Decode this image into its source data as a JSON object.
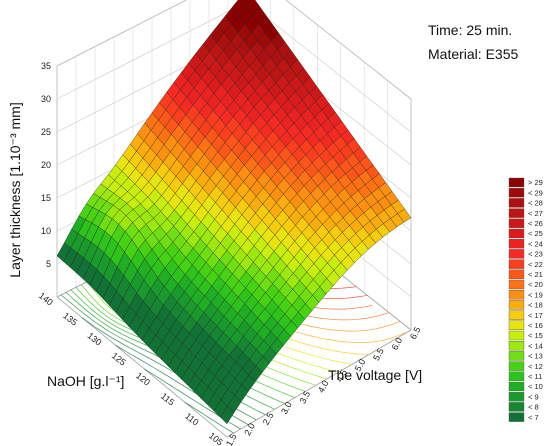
{
  "chart_data": {
    "type": "surface3d",
    "info": {
      "time": "Time: 25 min.",
      "material": "Material: E355"
    },
    "zlabel": "Layer thickness [1.10⁻³ mm]",
    "xlabel": "NaOH [g.l⁻¹]",
    "ylabel": "The voltage [V]",
    "zlim": [
      0,
      35
    ],
    "xlim": [
      105,
      140
    ],
    "ylim": [
      1.5,
      6.5
    ],
    "z_ticks": [
      "5",
      "10",
      "15",
      "20",
      "25",
      "30",
      "35"
    ],
    "x_ticks": [
      "140",
      "135",
      "130",
      "125",
      "120",
      "115",
      "110",
      "105"
    ],
    "y_ticks": [
      "1.5",
      "2.0",
      "2.5",
      "3.0",
      "3.5",
      "4.0",
      "4.5",
      "5.0",
      "5.5",
      "6.0",
      "6.5"
    ],
    "corner_values": [
      {
        "naoh": 140,
        "voltage": 1.5,
        "thickness": 6
      },
      {
        "naoh": 140,
        "voltage": 6.5,
        "thickness": 32
      },
      {
        "naoh": 105,
        "voltage": 1.5,
        "thickness": 2
      },
      {
        "naoh": 105,
        "voltage": 6.5,
        "thickness": 17
      }
    ],
    "grid": true,
    "legend_position": "right",
    "legend": [
      {
        "label": "> 29",
        "color": "#8b0000"
      },
      {
        "label": "< 29",
        "color": "#9c0a0a"
      },
      {
        "label": "< 28",
        "color": "#ac1010"
      },
      {
        "label": "< 27",
        "color": "#bd1414"
      },
      {
        "label": "< 26",
        "color": "#cc1818"
      },
      {
        "label": "< 25",
        "color": "#dc1c1c"
      },
      {
        "label": "< 24",
        "color": "#ea2222"
      },
      {
        "label": "< 23",
        "color": "#f52a22"
      },
      {
        "label": "< 22",
        "color": "#fb3f1e"
      },
      {
        "label": "< 21",
        "color": "#fd561a"
      },
      {
        "label": "< 20",
        "color": "#fe7216"
      },
      {
        "label": "< 19",
        "color": "#fd8f12"
      },
      {
        "label": "< 18",
        "color": "#fbad10"
      },
      {
        "label": "< 17",
        "color": "#f6cc10"
      },
      {
        "label": "< 16",
        "color": "#e8e412"
      },
      {
        "label": "< 15",
        "color": "#c8ee10"
      },
      {
        "label": "< 14",
        "color": "#9ee812"
      },
      {
        "label": "< 13",
        "color": "#6fde14"
      },
      {
        "label": "< 12",
        "color": "#47d216"
      },
      {
        "label": "< 11",
        "color": "#2ec21c"
      },
      {
        "label": "< 10",
        "color": "#1fae24"
      },
      {
        "label": "< 9",
        "color": "#1a9a2c"
      },
      {
        "label": "< 8",
        "color": "#168632"
      },
      {
        "label": "< 7",
        "color": "#127236"
      }
    ]
  }
}
